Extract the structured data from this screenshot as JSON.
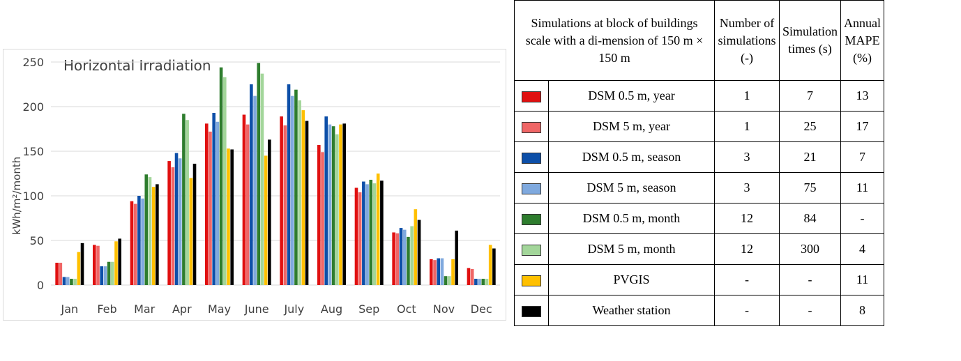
{
  "chart_data": {
    "type": "bar",
    "title": "Horizontal Irradiation",
    "ylabel": "kWh/m²/month",
    "xlabel": "",
    "ylim": [
      0,
      250
    ],
    "yticks": [
      0,
      50,
      100,
      150,
      200,
      250
    ],
    "grid": true,
    "categories": [
      "Jan",
      "Feb",
      "Mar",
      "Apr",
      "May",
      "June",
      "July",
      "Aug",
      "Sep",
      "Oct",
      "Nov",
      "Dec"
    ],
    "series": [
      {
        "name": "DSM 0.5 m, year",
        "color": "#e01010",
        "values": [
          25,
          45,
          94,
          139,
          181,
          191,
          189,
          157,
          109,
          59,
          29,
          19
        ]
      },
      {
        "name": "DSM 5 m, year",
        "color": "#f06666",
        "values": [
          25,
          44,
          91,
          132,
          172,
          180,
          179,
          149,
          104,
          58,
          28,
          18
        ]
      },
      {
        "name": "DSM 0.5 m, season",
        "color": "#0d4fa8",
        "values": [
          9,
          21,
          100,
          148,
          193,
          225,
          225,
          189,
          116,
          64,
          30,
          7
        ]
      },
      {
        "name": "DSM 5 m, season",
        "color": "#7fa9de",
        "values": [
          9,
          21,
          97,
          142,
          183,
          212,
          212,
          180,
          113,
          62,
          30,
          7
        ]
      },
      {
        "name": "DSM 0.5 m, month",
        "color": "#2e7d2e",
        "values": [
          7,
          26,
          124,
          192,
          244,
          249,
          219,
          178,
          118,
          54,
          10,
          7
        ]
      },
      {
        "name": "DSM 5 m, month",
        "color": "#a3d69a",
        "values": [
          7,
          26,
          121,
          185,
          233,
          237,
          207,
          169,
          114,
          66,
          10,
          7
        ]
      },
      {
        "name": "PVGIS",
        "color": "#ffc000",
        "values": [
          37,
          49,
          110,
          120,
          153,
          145,
          196,
          180,
          125,
          85,
          29,
          45
        ]
      },
      {
        "name": "Weather station",
        "color": "#000000",
        "values": [
          47,
          52,
          113,
          136,
          152,
          163,
          184,
          181,
          117,
          73,
          61,
          41
        ]
      }
    ]
  },
  "table": {
    "header": {
      "col1": "Simulations at block of buildings scale with a di-mension of 150 m × 150 m",
      "col2": "Number of simulations (-)",
      "col3": "Simulation times (s)",
      "col4": "Annual MAPE (%)"
    },
    "rows": [
      {
        "label": "DSM 0.5 m, year",
        "color": "#e01010",
        "num": "1",
        "time": "7",
        "mape": "13"
      },
      {
        "label": "DSM 5 m, year",
        "color": "#f06666",
        "num": "1",
        "time": "25",
        "mape": "17"
      },
      {
        "label": "DSM 0.5 m, season",
        "color": "#0d4fa8",
        "num": "3",
        "time": "21",
        "mape": "7"
      },
      {
        "label": "DSM 5 m, season",
        "color": "#7fa9de",
        "num": "3",
        "time": "75",
        "mape": "11"
      },
      {
        "label": "DSM 0.5 m, month",
        "color": "#2e7d2e",
        "num": "12",
        "time": "84",
        "mape": "-"
      },
      {
        "label": "DSM 5 m, month",
        "color": "#a3d69a",
        "num": "12",
        "time": "300",
        "mape": "4"
      },
      {
        "label": "PVGIS",
        "color": "#ffc000",
        "num": "-",
        "time": "-",
        "mape": "11"
      },
      {
        "label": "Weather station",
        "color": "#000000",
        "num": "-",
        "time": "-",
        "mape": "8"
      }
    ]
  }
}
